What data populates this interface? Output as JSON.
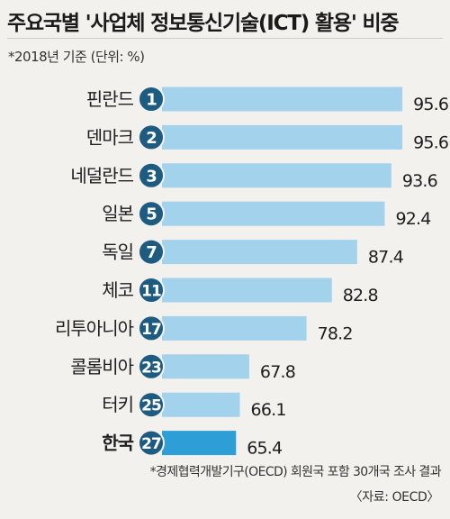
{
  "title": "주요국별 '사업체 정보통신기술(ICT) 활용' 비중",
  "subtitle": "*2018년 기준 (단위: %)",
  "footnote": "*경제협력개발기구(OECD) 회원국 포함 30개국 조사 결과",
  "source": "〈자료: OECD〉",
  "colors": {
    "bar": "#a3d2ec",
    "highlight_bar": "#2e9ed6",
    "badge": "#1d5c80",
    "badge_text": "#ffffff",
    "background": "#f3f1ed"
  },
  "chart_data": {
    "type": "bar",
    "orientation": "horizontal",
    "title": "주요국별 '사업체 정보통신기술(ICT) 활용' 비중",
    "unit": "%",
    "categories": [
      "핀란드",
      "덴마크",
      "네덜란드",
      "일본",
      "독일",
      "체코",
      "리투아니아",
      "콜롬비아",
      "터키",
      "한국"
    ],
    "ranks": [
      "1",
      "2",
      "3",
      "5",
      "7",
      "11",
      "17",
      "23",
      "25",
      "27"
    ],
    "values": [
      95.6,
      95.6,
      93.6,
      92.4,
      87.4,
      82.8,
      78.2,
      67.8,
      66.1,
      65.4
    ],
    "value_labels": [
      "95.6",
      "95.6",
      "93.6",
      "92.4",
      "87.4",
      "82.8",
      "78.2",
      "67.8",
      "66.1",
      "65.4"
    ],
    "highlight": "한국",
    "xlim": [
      50,
      100
    ]
  }
}
